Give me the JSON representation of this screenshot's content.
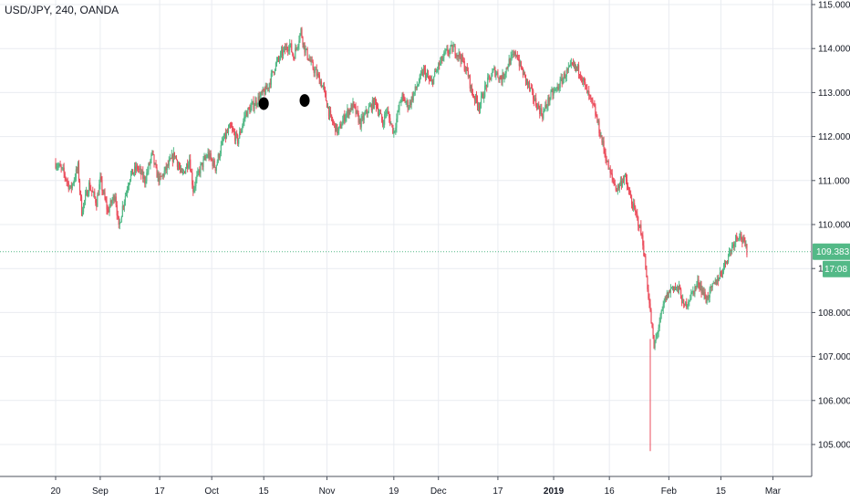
{
  "header": {
    "title": "USD/JPY, 240, OANDA"
  },
  "price_badge": {
    "price": "109.383",
    "countdown": "17:08"
  },
  "chart_data": {
    "type": "candlestick",
    "title": "USD/JPY, 240, OANDA",
    "ylim": [
      104.3,
      115.0
    ],
    "y_ticks": [
      "115.000",
      "114.000",
      "113.000",
      "112.000",
      "111.000",
      "110.000",
      "109.000",
      "108.000",
      "107.000",
      "106.000",
      "105.000"
    ],
    "y_tick_values": [
      115,
      114,
      113,
      112,
      111,
      110,
      109,
      108,
      107,
      106,
      105
    ],
    "x_ticks": [
      {
        "label": "20",
        "day": 0,
        "bold": false
      },
      {
        "label": "Sep",
        "day": 12,
        "bold": false
      },
      {
        "label": "17",
        "day": 28,
        "bold": false
      },
      {
        "label": "Oct",
        "day": 42,
        "bold": false
      },
      {
        "label": "15",
        "day": 56,
        "bold": false
      },
      {
        "label": "Nov",
        "day": 73,
        "bold": false
      },
      {
        "label": "19",
        "day": 91,
        "bold": false
      },
      {
        "label": "Dec",
        "day": 103,
        "bold": false
      },
      {
        "label": "17",
        "day": 119,
        "bold": false
      },
      {
        "label": "2019",
        "day": 134,
        "bold": true
      },
      {
        "label": "16",
        "day": 149,
        "bold": false
      },
      {
        "label": "Feb",
        "day": 165,
        "bold": false
      },
      {
        "label": "15",
        "day": 179,
        "bold": false
      },
      {
        "label": "Mar",
        "day": 193,
        "bold": false
      }
    ],
    "last_price": 109.383,
    "up_color": "#53b987",
    "down_color": "#eb4d5c",
    "path": [
      [
        0,
        111.4
      ],
      [
        2,
        111.2
      ],
      [
        4,
        110.8
      ],
      [
        6,
        111.3
      ],
      [
        7,
        110.3
      ],
      [
        9,
        110.9
      ],
      [
        11,
        110.5
      ],
      [
        12,
        111.0
      ],
      [
        14,
        110.3
      ],
      [
        16,
        110.7
      ],
      [
        17,
        109.9
      ],
      [
        18,
        110.4
      ],
      [
        20,
        111.1
      ],
      [
        22,
        111.3
      ],
      [
        24,
        111.0
      ],
      [
        26,
        111.6
      ],
      [
        27,
        111.2
      ],
      [
        28,
        111.0
      ],
      [
        30,
        111.3
      ],
      [
        32,
        111.6
      ],
      [
        34,
        111.1
      ],
      [
        36,
        111.5
      ],
      [
        37,
        110.8
      ],
      [
        39,
        111.3
      ],
      [
        41,
        111.6
      ],
      [
        43,
        111.3
      ],
      [
        45,
        111.9
      ],
      [
        47,
        112.2
      ],
      [
        49,
        111.9
      ],
      [
        51,
        112.5
      ],
      [
        53,
        112.7
      ],
      [
        55,
        112.9
      ],
      [
        57,
        113.1
      ],
      [
        59,
        113.6
      ],
      [
        61,
        113.9
      ],
      [
        63,
        114.1
      ],
      [
        64,
        113.8
      ],
      [
        66,
        114.4
      ],
      [
        67,
        114.0
      ],
      [
        69,
        113.6
      ],
      [
        71,
        113.3
      ],
      [
        72,
        113.1
      ],
      [
        74,
        112.4
      ],
      [
        76,
        112.1
      ],
      [
        78,
        112.5
      ],
      [
        80,
        112.7
      ],
      [
        82,
        112.3
      ],
      [
        84,
        112.6
      ],
      [
        86,
        112.8
      ],
      [
        88,
        112.3
      ],
      [
        89,
        112.6
      ],
      [
        91,
        112.1
      ],
      [
        93,
        112.9
      ],
      [
        95,
        112.7
      ],
      [
        97,
        113.1
      ],
      [
        99,
        113.5
      ],
      [
        101,
        113.2
      ],
      [
        103,
        113.6
      ],
      [
        105,
        113.9
      ],
      [
        107,
        114.0
      ],
      [
        109,
        113.8
      ],
      [
        111,
        113.4
      ],
      [
        112,
        113.0
      ],
      [
        114,
        112.7
      ],
      [
        116,
        113.2
      ],
      [
        118,
        113.5
      ],
      [
        120,
        113.3
      ],
      [
        122,
        113.7
      ],
      [
        124,
        113.9
      ],
      [
        125,
        113.6
      ],
      [
        127,
        113.2
      ],
      [
        129,
        112.8
      ],
      [
        131,
        112.5
      ],
      [
        133,
        112.9
      ],
      [
        135,
        113.1
      ],
      [
        137,
        113.4
      ],
      [
        139,
        113.6
      ],
      [
        141,
        113.5
      ],
      [
        143,
        113.0
      ],
      [
        145,
        112.6
      ],
      [
        147,
        111.9
      ],
      [
        149,
        111.2
      ],
      [
        151,
        110.8
      ],
      [
        153,
        111.1
      ],
      [
        155,
        110.5
      ],
      [
        157,
        110.0
      ],
      [
        158,
        109.6
      ],
      [
        159,
        108.8
      ],
      [
        160,
        108.0
      ],
      [
        161,
        107.2
      ],
      [
        162,
        107.6
      ],
      [
        164,
        108.3
      ],
      [
        166,
        108.6
      ],
      [
        168,
        108.5
      ],
      [
        169,
        108.1
      ],
      [
        171,
        108.4
      ],
      [
        173,
        108.7
      ],
      [
        175,
        108.3
      ],
      [
        177,
        108.6
      ],
      [
        179,
        108.9
      ],
      [
        181,
        109.3
      ],
      [
        183,
        109.7
      ],
      [
        184,
        109.8
      ],
      [
        185,
        109.6
      ],
      [
        186,
        109.4
      ]
    ],
    "annotation_markers": [
      {
        "day": 56,
        "price": 112.75
      },
      {
        "day": 67,
        "price": 112.82
      }
    ],
    "flash_wick": {
      "day": 160,
      "low": 104.85
    }
  }
}
